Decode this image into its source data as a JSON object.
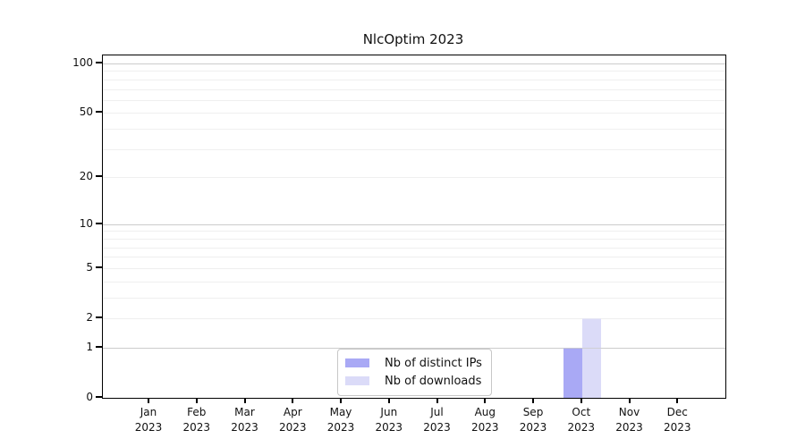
{
  "chart_data": {
    "type": "bar",
    "title": "NlcOptim 2023",
    "categories": [
      "Jan",
      "Feb",
      "Mar",
      "Apr",
      "May",
      "Jun",
      "Jul",
      "Aug",
      "Sep",
      "Oct",
      "Nov",
      "Dec"
    ],
    "category_year": "2023",
    "series": [
      {
        "name": "Nb of distinct IPs",
        "color": "#a9a9f5",
        "values": [
          0,
          0,
          0,
          0,
          0,
          0,
          0,
          0,
          0,
          1,
          0,
          0
        ]
      },
      {
        "name": "Nb of downloads",
        "color": "#dbdbf8",
        "values": [
          0,
          0,
          0,
          0,
          0,
          0,
          0,
          0,
          0,
          2,
          0,
          0
        ]
      }
    ],
    "y_scale": "log1p",
    "y_tick_values": [
      0,
      1,
      2,
      5,
      10,
      20,
      50,
      100
    ],
    "y_major_gridlines": [
      1,
      10,
      100
    ],
    "y_minor_gridlines": [
      2,
      3,
      4,
      5,
      6,
      7,
      8,
      9,
      20,
      30,
      40,
      50,
      60,
      70,
      80,
      90
    ],
    "ylim": [
      0,
      112
    ],
    "xlabel": "",
    "ylabel": "",
    "grid": "on",
    "legend_position": "bottom-center"
  },
  "colors": {
    "background": "#ffffff",
    "axis": "#000000",
    "major_grid": "#cccccc",
    "minor_grid": "#efefef",
    "legend_border": "#c7c7c7",
    "text": "#111111"
  }
}
